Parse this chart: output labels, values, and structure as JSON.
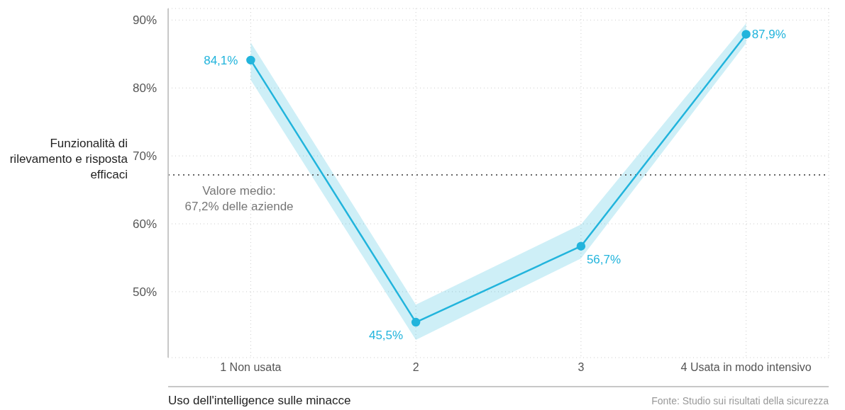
{
  "chart_data": {
    "type": "line",
    "categories": [
      "1 Non usata",
      "2",
      "3",
      "4 Usata in modo intensivo"
    ],
    "series": [
      {
        "color": "#22b4dc",
        "values": [
          84.1,
          45.5,
          56.7,
          87.9
        ],
        "lower": [
          81.2,
          42.9,
          54.9,
          86.6
        ],
        "upper": [
          86.7,
          48.1,
          59.9,
          89.5
        ],
        "value_labels": [
          "84,1%",
          "45,5%",
          "56,7%",
          "87,9%"
        ]
      }
    ],
    "xlabel": "Uso dell'intelligence sulle minacce",
    "ylabel": "Funzionalità di rilevamento e risposta efficaci",
    "ylim": [
      40.3,
      91.7
    ],
    "yticks": [
      {
        "value": 50,
        "label": "50%"
      },
      {
        "value": 60,
        "label": "60%"
      },
      {
        "value": 70,
        "label": "70%"
      },
      {
        "value": 80,
        "label": "80%"
      },
      {
        "value": 90,
        "label": "90%"
      }
    ],
    "ref_lines": [
      {
        "axis": "y",
        "value": 67.2,
        "label": "Valore medio:\n67,2% delle aziende",
        "color": "#666666",
        "line_style": "dotted"
      }
    ],
    "annotations": [
      "Fonte: Studio sui risultati della sicurezza"
    ],
    "grid": true,
    "marker": "circle",
    "line_style": "solid"
  }
}
